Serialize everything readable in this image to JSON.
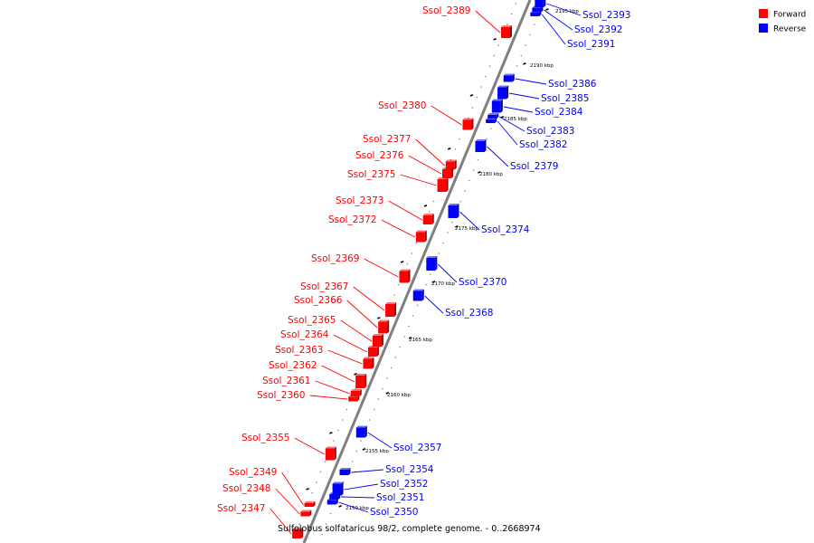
{
  "caption": "Sulfolobus solfataricus 98/2, complete genome. - 0..2668974",
  "legend": [
    {
      "label": "Forward",
      "color": "#ff0000"
    },
    {
      "label": "Reverse",
      "color": "#0000ff"
    }
  ],
  "colors": {
    "forward": "#ff0000",
    "reverse": "#0000ff",
    "backbone": "#808080"
  },
  "ticks": [
    {
      "kbp": 2195,
      "label": "2195 kbp"
    },
    {
      "kbp": 2190,
      "label": "2190 kbp"
    },
    {
      "kbp": 2185,
      "label": "2185 kbp"
    },
    {
      "kbp": 2180,
      "label": "2180 kbp"
    },
    {
      "kbp": 2175,
      "label": "2175 kbp"
    },
    {
      "kbp": 2170,
      "label": "2170 kbp"
    },
    {
      "kbp": 2165,
      "label": "2165 kbp"
    },
    {
      "kbp": 2160,
      "label": "2160 kbp"
    },
    {
      "kbp": 2155,
      "label": "2155 kbp"
    },
    {
      "kbp": 2150,
      "label": "2150 kbp"
    }
  ],
  "genes": [
    {
      "name": "Ssol_2393",
      "strand": "reverse"
    },
    {
      "name": "Ssol_2392",
      "strand": "reverse"
    },
    {
      "name": "Ssol_2391",
      "strand": "reverse"
    },
    {
      "name": "Ssol_2389",
      "strand": "forward"
    },
    {
      "name": "Ssol_2386",
      "strand": "reverse"
    },
    {
      "name": "Ssol_2385",
      "strand": "reverse"
    },
    {
      "name": "Ssol_2384",
      "strand": "reverse"
    },
    {
      "name": "Ssol_2383",
      "strand": "reverse"
    },
    {
      "name": "Ssol_2382",
      "strand": "reverse"
    },
    {
      "name": "Ssol_2380",
      "strand": "forward"
    },
    {
      "name": "Ssol_2379",
      "strand": "reverse"
    },
    {
      "name": "Ssol_2377",
      "strand": "forward"
    },
    {
      "name": "Ssol_2376",
      "strand": "forward"
    },
    {
      "name": "Ssol_2375",
      "strand": "forward"
    },
    {
      "name": "Ssol_2374",
      "strand": "reverse"
    },
    {
      "name": "Ssol_2373",
      "strand": "forward"
    },
    {
      "name": "Ssol_2372",
      "strand": "forward"
    },
    {
      "name": "Ssol_2370",
      "strand": "reverse"
    },
    {
      "name": "Ssol_2369",
      "strand": "forward"
    },
    {
      "name": "Ssol_2368",
      "strand": "reverse"
    },
    {
      "name": "Ssol_2367",
      "strand": "forward"
    },
    {
      "name": "Ssol_2366",
      "strand": "forward"
    },
    {
      "name": "Ssol_2365",
      "strand": "forward"
    },
    {
      "name": "Ssol_2364",
      "strand": "forward"
    },
    {
      "name": "Ssol_2363",
      "strand": "forward"
    },
    {
      "name": "Ssol_2362",
      "strand": "forward"
    },
    {
      "name": "Ssol_2361",
      "strand": "forward"
    },
    {
      "name": "Ssol_2360",
      "strand": "forward"
    },
    {
      "name": "Ssol_2357",
      "strand": "reverse"
    },
    {
      "name": "Ssol_2355",
      "strand": "forward"
    },
    {
      "name": "Ssol_2354",
      "strand": "reverse"
    },
    {
      "name": "Ssol_2352",
      "strand": "reverse"
    },
    {
      "name": "Ssol_2351",
      "strand": "reverse"
    },
    {
      "name": "Ssol_2350",
      "strand": "reverse"
    },
    {
      "name": "Ssol_2349",
      "strand": "forward"
    },
    {
      "name": "Ssol_2348",
      "strand": "forward"
    },
    {
      "name": "Ssol_2347",
      "strand": "forward"
    }
  ]
}
